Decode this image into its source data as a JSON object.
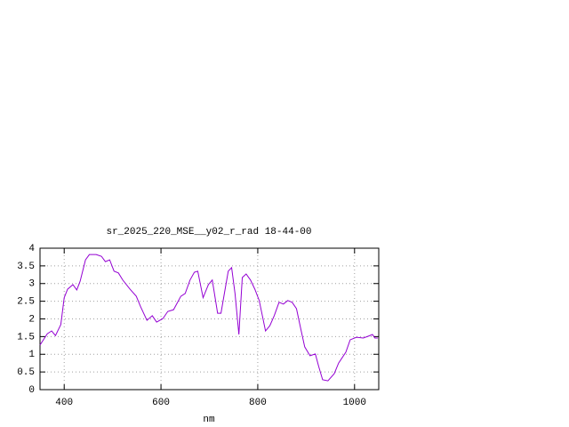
{
  "chart_data": {
    "type": "line",
    "title": "sr_2025_220_MSE__y02_r_rad 18-44-00",
    "x_label": "nm",
    "x": [
      350,
      365,
      374,
      382,
      393,
      400,
      407,
      418,
      426,
      433,
      444,
      452,
      466,
      477,
      485,
      494,
      503,
      512,
      521,
      536,
      549,
      558,
      571,
      582,
      591,
      604,
      614,
      626,
      641,
      650,
      660,
      669,
      676,
      687,
      698,
      706,
      717,
      724,
      731,
      739,
      746,
      753,
      761,
      768,
      776,
      785,
      794,
      803,
      816,
      825,
      834,
      844,
      853,
      862,
      871,
      880,
      889,
      897,
      908,
      919,
      926,
      934,
      945,
      958,
      967,
      982,
      991,
      1004,
      1018,
      1028,
      1037,
      1042,
      1048
    ],
    "series": [
      {
        "name": "sr_2025_220_MSE__y02_r_rad 18-44-00",
        "color": "#9400d3",
        "values": [
          1.26,
          1.58,
          1.66,
          1.53,
          1.84,
          2.6,
          2.84,
          2.97,
          2.82,
          3.07,
          3.67,
          3.82,
          3.82,
          3.77,
          3.62,
          3.67,
          3.35,
          3.3,
          3.1,
          2.84,
          2.64,
          2.34,
          1.96,
          2.09,
          1.91,
          2.01,
          2.21,
          2.26,
          2.64,
          2.72,
          3.1,
          3.32,
          3.35,
          2.6,
          2.97,
          3.1,
          2.16,
          2.16,
          2.72,
          3.35,
          3.45,
          2.72,
          1.56,
          3.17,
          3.27,
          3.1,
          2.84,
          2.52,
          1.66,
          1.81,
          2.09,
          2.47,
          2.42,
          2.52,
          2.47,
          2.29,
          1.71,
          1.21,
          0.96,
          1.01,
          0.65,
          0.28,
          0.25,
          0.45,
          0.75,
          1.06,
          1.41,
          1.48,
          1.46,
          1.51,
          1.56,
          1.46,
          1.46
        ]
      }
    ],
    "xlim": [
      350,
      1050
    ],
    "xticks": [
      400,
      600,
      800,
      1000
    ],
    "ylim": [
      0,
      4
    ],
    "yticks": [
      0,
      0.5,
      1,
      1.5,
      2,
      2.5,
      3,
      3.5,
      4
    ],
    "grid": true
  }
}
